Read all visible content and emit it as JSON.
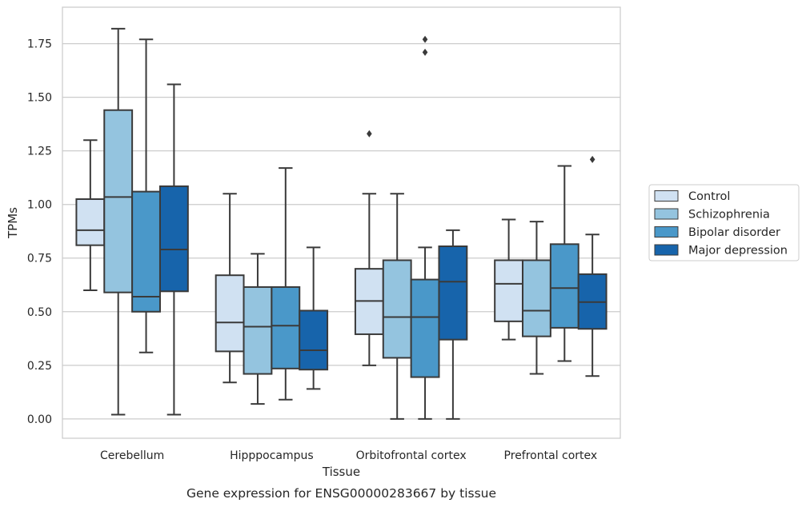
{
  "chart_data": {
    "type": "box",
    "caption": "Gene expression for ENSG00000283667 by tissue",
    "xlabel": "Tissue",
    "ylabel": "TPMs",
    "categories": [
      "Cerebellum",
      "Hipppocampus",
      "Orbitofrontal cortex",
      "Prefrontal cortex"
    ],
    "yticks": [
      "0.00",
      "0.25",
      "0.50",
      "0.75",
      "1.00",
      "1.25",
      "1.50",
      "1.75"
    ],
    "ylim": [
      -0.09,
      1.92
    ],
    "grid": "horizontal",
    "legend_position": "right",
    "series": [
      {
        "name": "Control",
        "color": "#d0e1f2",
        "boxes": [
          {
            "whislo": 0.6,
            "q1": 0.81,
            "med": 0.88,
            "q3": 1.025,
            "whishi": 1.3,
            "fliers": []
          },
          {
            "whislo": 0.17,
            "q1": 0.315,
            "med": 0.45,
            "q3": 0.67,
            "whishi": 1.05,
            "fliers": []
          },
          {
            "whislo": 0.25,
            "q1": 0.395,
            "med": 0.55,
            "q3": 0.7,
            "whishi": 1.05,
            "fliers": [
              1.33
            ]
          },
          {
            "whislo": 0.37,
            "q1": 0.455,
            "med": 0.63,
            "q3": 0.74,
            "whishi": 0.93,
            "fliers": []
          }
        ]
      },
      {
        "name": "Schizophrenia",
        "color": "#94c4df",
        "boxes": [
          {
            "whislo": 0.02,
            "q1": 0.59,
            "med": 1.035,
            "q3": 1.44,
            "whishi": 1.82,
            "fliers": []
          },
          {
            "whislo": 0.07,
            "q1": 0.21,
            "med": 0.43,
            "q3": 0.615,
            "whishi": 0.77,
            "fliers": []
          },
          {
            "whislo": 0.0,
            "q1": 0.285,
            "med": 0.475,
            "q3": 0.74,
            "whishi": 1.05,
            "fliers": []
          },
          {
            "whislo": 0.21,
            "q1": 0.385,
            "med": 0.505,
            "q3": 0.74,
            "whishi": 0.92,
            "fliers": []
          }
        ]
      },
      {
        "name": "Bipolar disorder",
        "color": "#4a98c9",
        "boxes": [
          {
            "whislo": 0.31,
            "q1": 0.5,
            "med": 0.57,
            "q3": 1.06,
            "whishi": 1.77,
            "fliers": []
          },
          {
            "whislo": 0.09,
            "q1": 0.235,
            "med": 0.435,
            "q3": 0.615,
            "whishi": 1.17,
            "fliers": []
          },
          {
            "whislo": 0.0,
            "q1": 0.195,
            "med": 0.475,
            "q3": 0.65,
            "whishi": 0.8,
            "fliers": [
              1.71,
              1.77
            ]
          },
          {
            "whislo": 0.27,
            "q1": 0.425,
            "med": 0.61,
            "q3": 0.815,
            "whishi": 1.18,
            "fliers": []
          }
        ]
      },
      {
        "name": "Major depression",
        "color": "#1764ab",
        "boxes": [
          {
            "whislo": 0.02,
            "q1": 0.595,
            "med": 0.79,
            "q3": 1.085,
            "whishi": 1.56,
            "fliers": []
          },
          {
            "whislo": 0.14,
            "q1": 0.23,
            "med": 0.32,
            "q3": 0.505,
            "whishi": 0.8,
            "fliers": []
          },
          {
            "whislo": 0.0,
            "q1": 0.37,
            "med": 0.64,
            "q3": 0.805,
            "whishi": 0.88,
            "fliers": []
          },
          {
            "whislo": 0.2,
            "q1": 0.42,
            "med": 0.545,
            "q3": 0.675,
            "whishi": 0.86,
            "fliers": [
              1.21
            ]
          }
        ]
      }
    ]
  }
}
